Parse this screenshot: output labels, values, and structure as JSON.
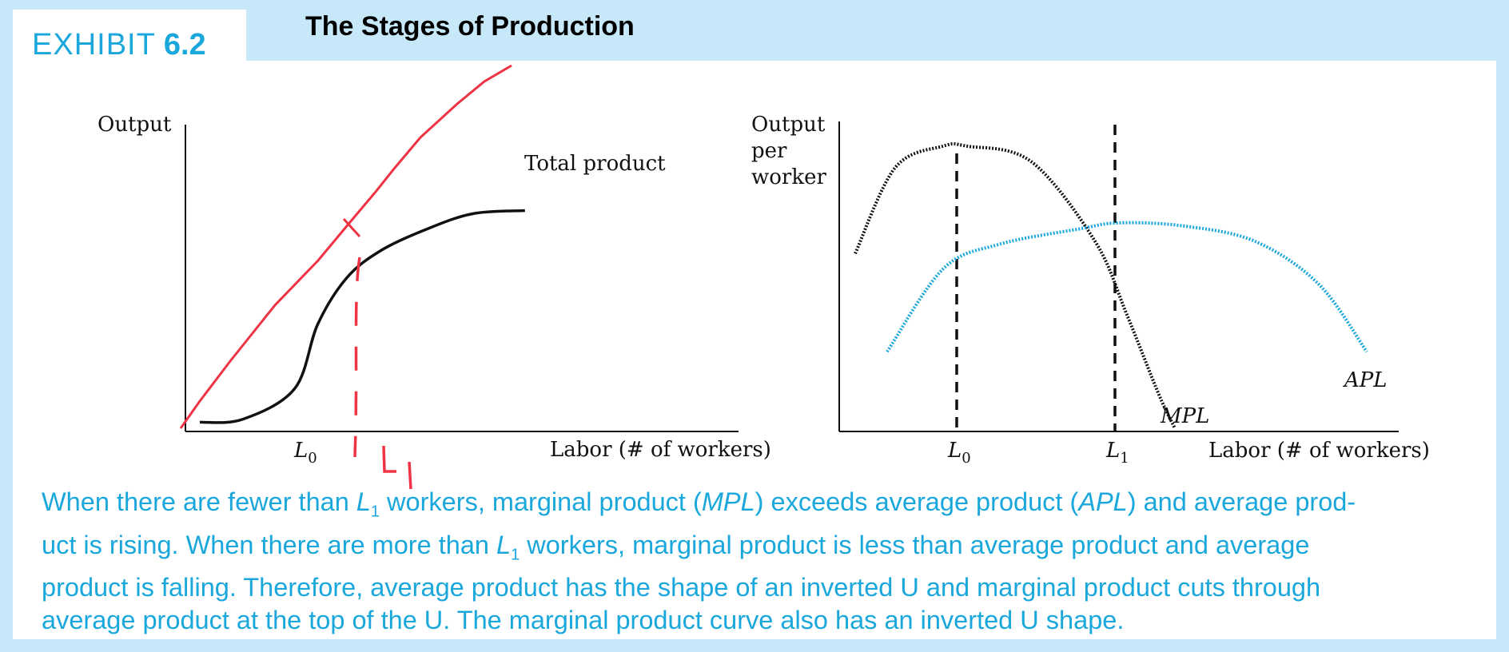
{
  "header": {
    "exhibit_word": "EXHIBIT",
    "exhibit_number": "6.2",
    "title": "The Stages of Production"
  },
  "colors": {
    "background": "#c6e8f8",
    "accent": "#1aa7dc",
    "annotation": "#ee3344",
    "curve": "#111111",
    "apl_curve": "#1aa7dc"
  },
  "chart_data": [
    {
      "type": "line",
      "ylabel": "Output",
      "xlabel": "Labor (# of workers)",
      "tick_labels": [
        "L0"
      ],
      "series": [
        {
          "name": "Total product",
          "x": [
            0.25,
            1.0,
            1.9,
            2.3,
            2.8,
            3.4,
            4.2,
            5.0,
            5.9
          ],
          "y": [
            0.3,
            0.4,
            1.4,
            3.5,
            5.0,
            5.9,
            6.6,
            7.1,
            7.2
          ]
        }
      ],
      "annotations": {
        "handwritten_label": "L1",
        "tangent_ray": "red line from origin tangent to total product",
        "dashed_marker": "red dashed vertical line at tangency point"
      }
    },
    {
      "type": "line",
      "ylabel": "Output per worker",
      "xlabel": "Labor (# of workers)",
      "tick_labels": [
        "L0",
        "L1"
      ],
      "series": [
        {
          "name": "MPL",
          "x": [
            0.2,
            0.7,
            1.3,
            1.6,
            2.4,
            3.2,
            3.6,
            4.0,
            4.2
          ],
          "y": [
            5.8,
            8.6,
            9.3,
            9.3,
            8.8,
            6.2,
            3.8,
            1.2,
            0.1
          ]
        },
        {
          "name": "APL",
          "x": [
            0.6,
            1.3,
            2.0,
            3.0,
            3.5,
            4.3,
            5.2,
            6.0,
            6.6
          ],
          "y": [
            2.6,
            5.3,
            6.1,
            6.6,
            6.8,
            6.7,
            6.2,
            4.8,
            2.6
          ]
        }
      ]
    }
  ],
  "caption": {
    "line1": [
      "When there are fewer than ",
      "L",
      "1",
      " workers, marginal product (",
      "MPL",
      ") exceeds average product (",
      "APL",
      ") and average prod-"
    ],
    "line2": [
      "uct is rising. When there are more than ",
      "L",
      "1",
      " workers, marginal product is less than average product and average"
    ],
    "line3": "product is falling. Therefore, average product has the shape of an inverted U and marginal product cuts through",
    "line4": "average product at the top of the U. The marginal product curve also has an inverted U shape."
  },
  "text_labels": {
    "left_ylabel": "Output",
    "left_xlabel": "Labor (# of workers)",
    "left_curve": "Total product",
    "left_tick_L": "L",
    "left_tick_sub": "0",
    "left_handwritten": "L",
    "right_ylabel_1": "Output",
    "right_ylabel_2": "per",
    "right_ylabel_3": "worker",
    "right_xlabel": "Labor (# of workers)",
    "right_tick0_L": "L",
    "right_tick0_sub": "0",
    "right_tick1_L": "L",
    "right_tick1_sub": "1",
    "mpl": "MPL",
    "apl": "APL"
  }
}
